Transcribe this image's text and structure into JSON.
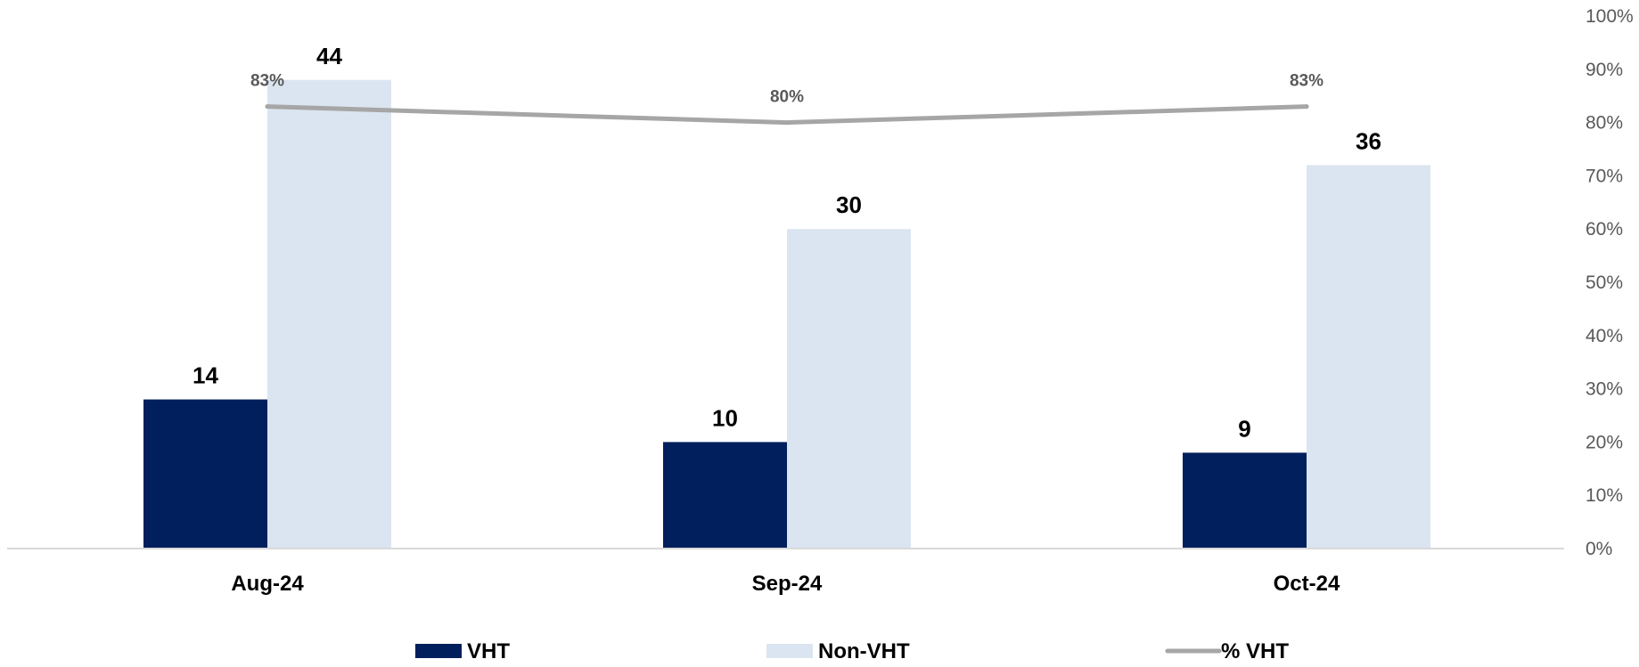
{
  "chart_data": {
    "type": "bar",
    "categories": [
      "Aug-24",
      "Sep-24",
      "Oct-24"
    ],
    "series": [
      {
        "name": "VHT",
        "type": "bar",
        "axis": "left",
        "color": "#001f5c",
        "values": [
          14,
          10,
          9
        ]
      },
      {
        "name": "Non-VHT",
        "type": "bar",
        "axis": "left",
        "color": "#dbe5f1",
        "values": [
          44,
          30,
          36
        ]
      },
      {
        "name": "% VHT",
        "type": "line",
        "axis": "right",
        "color": "#a6a6a6",
        "values": [
          83,
          80,
          83
        ],
        "labels": [
          "83%",
          "80%",
          "83%"
        ]
      }
    ],
    "left_axis": {
      "range": [
        0,
        50
      ],
      "visible": false
    },
    "right_axis": {
      "range": [
        0,
        100
      ],
      "ticks": [
        "0%",
        "10%",
        "20%",
        "30%",
        "40%",
        "50%",
        "60%",
        "70%",
        "80%",
        "90%",
        "100%"
      ]
    },
    "grid": false,
    "legend": {
      "position": "bottom",
      "entries": [
        "VHT",
        "Non-VHT",
        "% VHT"
      ]
    }
  }
}
